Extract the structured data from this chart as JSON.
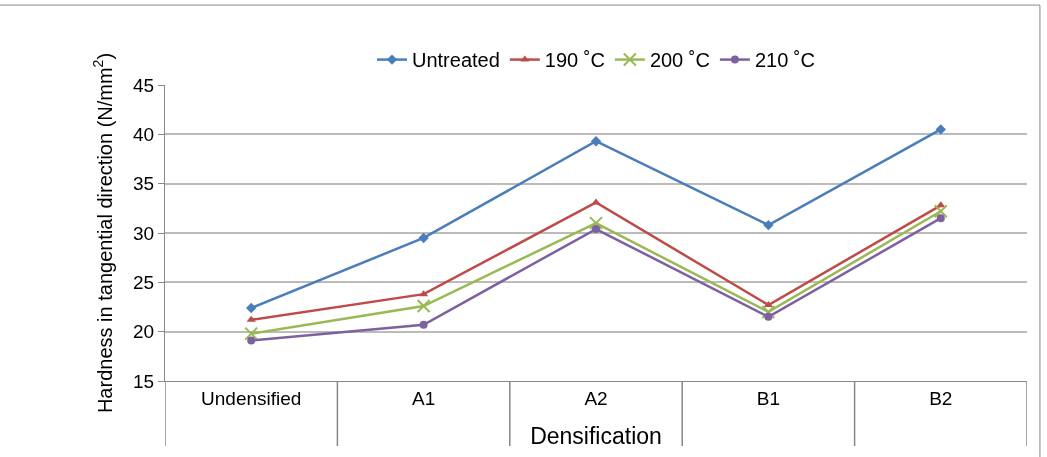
{
  "chart_data": {
    "type": "line",
    "xlabel": "Densification",
    "ylabel": "Hardness in tangential direction (N/mm$^{2}$)",
    "categories": [
      "Undensified",
      "A1",
      "A2",
      "B1",
      "B2"
    ],
    "series": [
      {
        "name": "Untreated",
        "color": "#4a7ebb",
        "marker": "diamond",
        "values": [
          22.4,
          29.5,
          39.3,
          30.8,
          40.5
        ]
      },
      {
        "name": "190 ˚C",
        "color": "#be4b48",
        "marker": "triangle",
        "values": [
          21.2,
          23.8,
          33.1,
          22.7,
          32.8
        ]
      },
      {
        "name": "200 ˚C",
        "color": "#98b954",
        "marker": "cross",
        "values": [
          19.8,
          22.6,
          31.0,
          22.0,
          32.2
        ]
      },
      {
        "name": "210 ˚C",
        "color": "#7d60a0",
        "marker": "circle",
        "values": [
          19.1,
          20.7,
          30.4,
          21.5,
          31.5
        ]
      }
    ],
    "ylim": [
      15,
      45
    ],
    "yticks": [
      15,
      20,
      25,
      30,
      35,
      40,
      45
    ],
    "grid": "y",
    "legend": "top"
  }
}
